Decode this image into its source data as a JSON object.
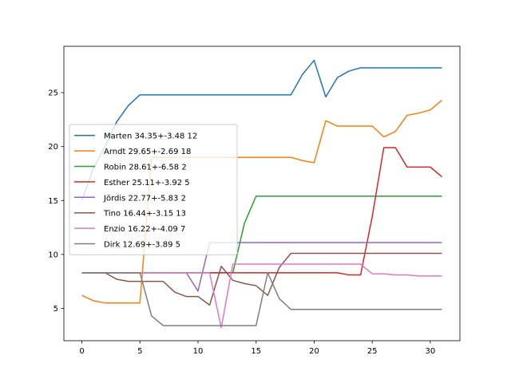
{
  "chart_data": {
    "type": "line",
    "title": "",
    "xlabel": "",
    "ylabel": "",
    "xlim": [
      -1.55,
      32.55
    ],
    "ylim": [
      2.0,
      29.3
    ],
    "grid": false,
    "legend": "center-left",
    "x_ticks": [
      0,
      5,
      10,
      15,
      20,
      25,
      30
    ],
    "y_ticks": [
      5,
      10,
      15,
      20,
      25
    ],
    "x": [
      0,
      1,
      2,
      3,
      4,
      5,
      6,
      7,
      8,
      9,
      10,
      11,
      12,
      13,
      14,
      15,
      16,
      17,
      18,
      19,
      20,
      21,
      22,
      23,
      24,
      25,
      26,
      27,
      28,
      29,
      30,
      31
    ],
    "series": [
      {
        "name": "Marten 34.35+-3.48 12",
        "color": "#1f77b4",
        "values": [
          15.0,
          18.0,
          20.0,
          22.3,
          23.8,
          24.8,
          24.8,
          24.8,
          24.8,
          24.8,
          24.8,
          24.8,
          24.8,
          24.8,
          24.8,
          24.8,
          24.8,
          24.8,
          24.8,
          26.7,
          28.0,
          24.6,
          26.4,
          27.0,
          27.3,
          27.3,
          27.3,
          27.3,
          27.3,
          27.3,
          27.3,
          27.3
        ]
      },
      {
        "name": "Arndt 29.65+-2.69 18",
        "color": "#ff7f0e",
        "values": [
          6.2,
          5.7,
          5.5,
          5.5,
          5.5,
          5.5,
          19.0,
          19.0,
          19.0,
          19.0,
          19.0,
          19.0,
          19.0,
          19.0,
          19.0,
          19.0,
          19.0,
          19.0,
          19.0,
          18.7,
          18.5,
          22.4,
          21.9,
          21.9,
          21.9,
          21.9,
          20.9,
          21.4,
          22.9,
          23.1,
          23.4,
          24.3
        ]
      },
      {
        "name": "Robin 28.61+-6.58 2",
        "color": "#2ca02c",
        "values": [
          8.3,
          8.3,
          8.3,
          8.3,
          8.3,
          8.3,
          8.3,
          8.3,
          8.3,
          8.3,
          8.3,
          8.3,
          8.3,
          8.3,
          12.9,
          15.4,
          15.4,
          15.4,
          15.4,
          15.4,
          15.4,
          15.4,
          15.4,
          15.4,
          15.4,
          15.4,
          15.4,
          15.4,
          15.4,
          15.4,
          15.4,
          15.4
        ]
      },
      {
        "name": "Esther 25.11+-3.92 5",
        "color": "#d62728",
        "values": [
          8.3,
          8.3,
          8.3,
          8.3,
          8.3,
          8.3,
          8.3,
          8.3,
          8.3,
          8.3,
          8.3,
          8.3,
          8.3,
          8.3,
          8.3,
          8.3,
          8.3,
          8.3,
          8.3,
          8.3,
          8.3,
          8.3,
          8.3,
          8.1,
          8.1,
          13.5,
          19.9,
          19.9,
          18.1,
          18.1,
          18.1,
          17.2
        ]
      },
      {
        "name": "Jördis 22.77+-5.83 2",
        "color": "#9467bd",
        "values": [
          8.3,
          8.3,
          8.3,
          8.3,
          8.3,
          8.3,
          8.3,
          8.3,
          8.3,
          8.3,
          6.6,
          11.1,
          11.1,
          11.1,
          11.1,
          11.1,
          11.1,
          11.1,
          11.1,
          11.1,
          11.1,
          11.1,
          11.1,
          11.1,
          11.1,
          11.1,
          11.1,
          11.1,
          11.1,
          11.1,
          11.1,
          11.1
        ]
      },
      {
        "name": "Tino 16.44+-3.15 13",
        "color": "#8c564b",
        "values": [
          8.3,
          8.3,
          8.3,
          7.7,
          7.5,
          7.5,
          7.5,
          7.5,
          6.5,
          6.1,
          6.1,
          5.3,
          8.9,
          7.6,
          7.3,
          7.1,
          6.2,
          8.8,
          10.1,
          10.1,
          10.1,
          10.1,
          10.1,
          10.1,
          10.1,
          10.1,
          10.1,
          10.1,
          10.1,
          10.1,
          10.1,
          10.1
        ]
      },
      {
        "name": "Enzio 16.22+-4.09 7",
        "color": "#e377c2",
        "values": [
          8.3,
          8.3,
          8.3,
          8.3,
          8.3,
          8.3,
          8.3,
          8.3,
          8.3,
          8.3,
          8.3,
          8.3,
          3.2,
          9.1,
          9.1,
          9.1,
          9.1,
          9.1,
          9.1,
          9.1,
          9.1,
          9.1,
          9.1,
          9.1,
          9.1,
          8.2,
          8.2,
          8.1,
          8.1,
          8.0,
          8.0,
          8.0
        ]
      },
      {
        "name": "Dirk 12.69+-3.89 5",
        "color": "#7f7f7f",
        "values": [
          8.3,
          8.3,
          8.3,
          8.3,
          8.3,
          8.3,
          4.3,
          3.4,
          3.4,
          3.4,
          3.4,
          3.4,
          3.4,
          3.4,
          3.4,
          3.4,
          8.3,
          5.9,
          4.9,
          4.9,
          4.9,
          4.9,
          4.9,
          4.9,
          4.9,
          4.9,
          4.9,
          4.9,
          4.9,
          4.9,
          4.9,
          4.9
        ]
      }
    ]
  }
}
